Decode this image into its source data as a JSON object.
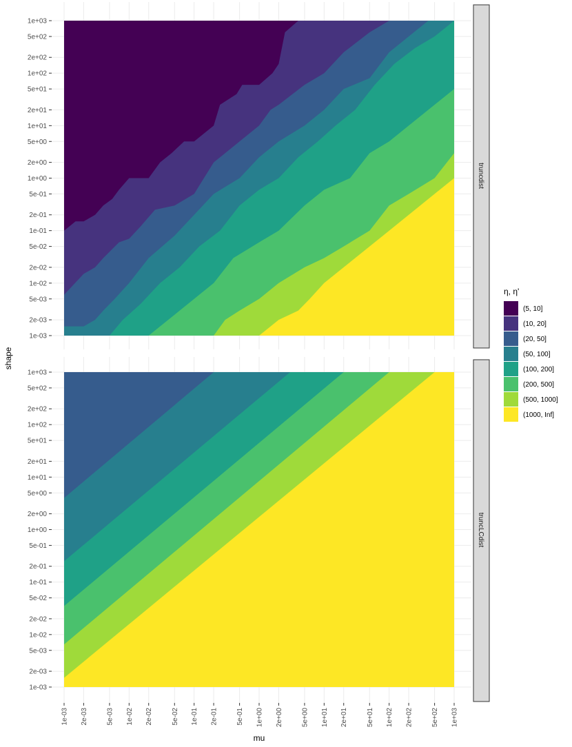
{
  "chart_data": {
    "type": "heatmap",
    "xlabel": "mu",
    "ylabel": "shape",
    "x_scale": "log10",
    "y_scale": "log10",
    "xlim": [
      0.001,
      1000
    ],
    "ylim": [
      0.001,
      1000
    ],
    "x_ticks": [
      {
        "value": 0.001,
        "label": "1e-03"
      },
      {
        "value": 0.002,
        "label": "2e-03"
      },
      {
        "value": 0.005,
        "label": "5e-03"
      },
      {
        "value": 0.01,
        "label": "1e-02"
      },
      {
        "value": 0.02,
        "label": "2e-02"
      },
      {
        "value": 0.05,
        "label": "5e-02"
      },
      {
        "value": 0.1,
        "label": "1e-01"
      },
      {
        "value": 0.2,
        "label": "2e-01"
      },
      {
        "value": 0.5,
        "label": "5e-01"
      },
      {
        "value": 1,
        "label": "1e+00"
      },
      {
        "value": 2,
        "label": "2e+00"
      },
      {
        "value": 5,
        "label": "5e+00"
      },
      {
        "value": 10,
        "label": "1e+01"
      },
      {
        "value": 20,
        "label": "2e+01"
      },
      {
        "value": 50,
        "label": "5e+01"
      },
      {
        "value": 100,
        "label": "1e+02"
      },
      {
        "value": 200,
        "label": "2e+02"
      },
      {
        "value": 500,
        "label": "5e+02"
      },
      {
        "value": 1000,
        "label": "1e+03"
      }
    ],
    "y_ticks": [
      {
        "value": 1000,
        "label": "1e+03"
      },
      {
        "value": 500,
        "label": "5e+02"
      },
      {
        "value": 200,
        "label": "2e+02"
      },
      {
        "value": 100,
        "label": "1e+02"
      },
      {
        "value": 50,
        "label": "5e+01"
      },
      {
        "value": 20,
        "label": "2e+01"
      },
      {
        "value": 10,
        "label": "1e+01"
      },
      {
        "value": 5,
        "label": "5e+00"
      },
      {
        "value": 2,
        "label": "2e+00"
      },
      {
        "value": 1,
        "label": "1e+00"
      },
      {
        "value": 0.5,
        "label": "5e-01"
      },
      {
        "value": 0.2,
        "label": "2e-01"
      },
      {
        "value": 0.1,
        "label": "1e-01"
      },
      {
        "value": 0.05,
        "label": "5e-02"
      },
      {
        "value": 0.02,
        "label": "2e-02"
      },
      {
        "value": 0.01,
        "label": "1e-02"
      },
      {
        "value": 0.005,
        "label": "5e-03"
      },
      {
        "value": 0.002,
        "label": "2e-03"
      },
      {
        "value": 0.001,
        "label": "1e-03"
      }
    ],
    "legend": {
      "title": "η, η'",
      "position": "right",
      "entries": [
        {
          "label": "(5, 10]",
          "color": "#440154"
        },
        {
          "label": "(10, 20]",
          "color": "#46337E"
        },
        {
          "label": "(20, 50]",
          "color": "#365C8D"
        },
        {
          "label": "(50, 100]",
          "color": "#277F8E"
        },
        {
          "label": "(100, 200]",
          "color": "#1FA187"
        },
        {
          "label": "(200, 500]",
          "color": "#4AC16D"
        },
        {
          "label": "(500, 1000]",
          "color": "#9FDA3A"
        },
        {
          "label": "(1000, Inf]",
          "color": "#FDE725"
        }
      ]
    },
    "panels": [
      {
        "strip": "truncdist",
        "region_boundaries": [
          {
            "between": [
              "(5, 10]",
              "(10, 20]"
            ],
            "points": [
              [
                0.001,
                0.1
              ],
              [
                0.0015,
                0.15
              ],
              [
                0.002,
                0.15
              ],
              [
                0.003,
                0.2
              ],
              [
                0.004,
                0.3
              ],
              [
                0.0055,
                0.4
              ],
              [
                0.007,
                0.6
              ],
              [
                0.01,
                1
              ],
              [
                0.02,
                1
              ],
              [
                0.03,
                2
              ],
              [
                0.045,
                3
              ],
              [
                0.07,
                5
              ],
              [
                0.1,
                5
              ],
              [
                0.2,
                10
              ],
              [
                0.25,
                25
              ],
              [
                0.45,
                40
              ],
              [
                0.55,
                60
              ],
              [
                1,
                60
              ],
              [
                1.6,
                100
              ],
              [
                2,
                150
              ],
              [
                2.5,
                600
              ],
              [
                4,
                1000
              ]
            ]
          },
          {
            "between": [
              "(10, 20]",
              "(20, 50]"
            ],
            "points": [
              [
                0.001,
                0.006
              ],
              [
                0.002,
                0.015
              ],
              [
                0.003,
                0.02
              ],
              [
                0.004,
                0.03
              ],
              [
                0.007,
                0.06
              ],
              [
                0.01,
                0.07
              ],
              [
                0.015,
                0.12
              ],
              [
                0.025,
                0.25
              ],
              [
                0.05,
                0.3
              ],
              [
                0.1,
                0.5
              ],
              [
                0.2,
                2
              ],
              [
                0.3,
                3
              ],
              [
                0.5,
                5
              ],
              [
                1,
                10
              ],
              [
                1.5,
                20
              ],
              [
                2,
                25
              ],
              [
                5,
                60
              ],
              [
                10,
                100
              ],
              [
                20,
                250
              ],
              [
                50,
                600
              ],
              [
                100,
                1000
              ]
            ]
          },
          {
            "between": [
              "(20, 50]",
              "(50, 100]"
            ],
            "points": [
              [
                0.002,
                0.0015
              ],
              [
                0.003,
                0.002
              ],
              [
                0.004,
                0.003
              ],
              [
                0.006,
                0.005
              ],
              [
                0.01,
                0.01
              ],
              [
                0.02,
                0.03
              ],
              [
                0.05,
                0.08
              ],
              [
                0.1,
                0.2
              ],
              [
                0.2,
                0.5
              ],
              [
                0.5,
                1
              ],
              [
                1,
                2.5
              ],
              [
                2,
                5
              ],
              [
                5,
                10
              ],
              [
                10,
                20
              ],
              [
                20,
                50
              ],
              [
                50,
                80
              ],
              [
                100,
                250
              ],
              [
                200,
                500
              ],
              [
                400,
                1000
              ]
            ]
          },
          {
            "between": [
              "(50, 100]",
              "(100, 200]"
            ],
            "points": [
              [
                0.005,
                0.001
              ],
              [
                0.008,
                0.002
              ],
              [
                0.015,
                0.004
              ],
              [
                0.03,
                0.01
              ],
              [
                0.06,
                0.02
              ],
              [
                0.12,
                0.05
              ],
              [
                0.25,
                0.1
              ],
              [
                0.5,
                0.3
              ],
              [
                1,
                0.6
              ],
              [
                2,
                1
              ],
              [
                4,
                2.5
              ],
              [
                8,
                5
              ],
              [
                15,
                10
              ],
              [
                30,
                20
              ],
              [
                60,
                60
              ],
              [
                120,
                150
              ],
              [
                250,
                300
              ],
              [
                500,
                500
              ],
              [
                1000,
                1000
              ]
            ]
          },
          {
            "between": [
              "(100, 200]",
              "(200, 500]"
            ],
            "points": [
              [
                0.02,
                0.001
              ],
              [
                0.04,
                0.002
              ],
              [
                0.1,
                0.005
              ],
              [
                0.2,
                0.01
              ],
              [
                0.4,
                0.03
              ],
              [
                1,
                0.06
              ],
              [
                2,
                0.1
              ],
              [
                5,
                0.3
              ],
              [
                10,
                0.6
              ],
              [
                25,
                1
              ],
              [
                50,
                3
              ],
              [
                100,
                5
              ],
              [
                200,
                10
              ],
              [
                500,
                25
              ],
              [
                1000,
                50
              ]
            ]
          },
          {
            "between": [
              "(200, 500]",
              "(500, 1000]"
            ],
            "points": [
              [
                0.2,
                0.001
              ],
              [
                0.3,
                0.002
              ],
              [
                0.5,
                0.003
              ],
              [
                1,
                0.005
              ],
              [
                2,
                0.01
              ],
              [
                5,
                0.02
              ],
              [
                10,
                0.03
              ],
              [
                20,
                0.05
              ],
              [
                50,
                0.1
              ],
              [
                100,
                0.3
              ],
              [
                200,
                0.5
              ],
              [
                500,
                1
              ],
              [
                1000,
                3
              ]
            ]
          },
          {
            "between": [
              "(500, 1000]",
              "(1000, Inf]"
            ],
            "points": [
              [
                1,
                0.001
              ],
              [
                2,
                0.002
              ],
              [
                4,
                0.003
              ],
              [
                6,
                0.005
              ],
              [
                10,
                0.01
              ],
              [
                20,
                0.02
              ],
              [
                50,
                0.05
              ],
              [
                100,
                0.1
              ],
              [
                200,
                0.2
              ],
              [
                500,
                0.5
              ],
              [
                1000,
                1
              ]
            ]
          }
        ]
      },
      {
        "strip": "truncLCdist",
        "region_boundaries": [
          {
            "between": [
              "(20, 50]",
              "(50, 100]"
            ],
            "points": [
              [
                0.001,
                4
              ],
              [
                0.2,
                1000
              ]
            ]
          },
          {
            "between": [
              "(50, 100]",
              "(100, 200]"
            ],
            "points": [
              [
                0.001,
                0.25
              ],
              [
                3,
                1000
              ]
            ]
          },
          {
            "between": [
              "(100, 200]",
              "(200, 500]"
            ],
            "points": [
              [
                0.001,
                0.035
              ],
              [
                20,
                1000
              ]
            ]
          },
          {
            "between": [
              "(200, 500]",
              "(500, 1000]"
            ],
            "points": [
              [
                0.001,
                0.0065
              ],
              [
                100,
                1000
              ]
            ]
          },
          {
            "between": [
              "(500, 1000]",
              "(1000, Inf]"
            ],
            "points": [
              [
                0.001,
                0.0015
              ],
              [
                500,
                1000
              ]
            ]
          }
        ]
      }
    ]
  }
}
